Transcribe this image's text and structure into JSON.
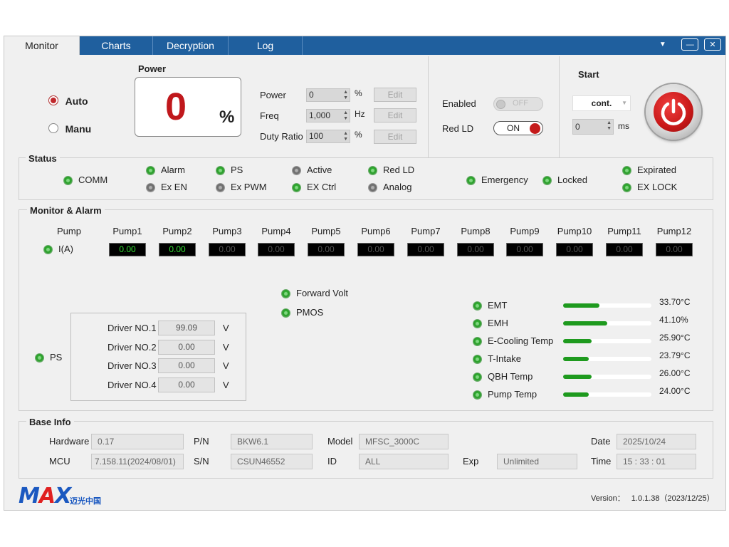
{
  "tabs": [
    {
      "label": "Monitor",
      "active": true
    },
    {
      "label": "Charts",
      "active": false
    },
    {
      "label": "Decryption",
      "active": false
    },
    {
      "label": "Log",
      "active": false
    }
  ],
  "window_controls": {
    "dropdown": "▼",
    "minimize": "—",
    "close": "✕"
  },
  "mode": {
    "auto_label": "Auto",
    "manu_label": "Manu",
    "selected": "Auto"
  },
  "power_display": {
    "title": "Power",
    "value": "0",
    "unit": "%"
  },
  "params": {
    "power": {
      "label": "Power",
      "value": "0",
      "unit": "%",
      "edit": "Edit"
    },
    "freq": {
      "label": "Freq",
      "value": "1,000",
      "unit": "Hz",
      "edit": "Edit"
    },
    "duty": {
      "label": "Duty Ratio",
      "value": "100",
      "unit": "%",
      "edit": "Edit"
    }
  },
  "switches": {
    "enabled": {
      "label": "Enabled",
      "state": "OFF"
    },
    "red_ld": {
      "label": "Red LD",
      "state": "ON"
    }
  },
  "start": {
    "title": "Start",
    "mode": "cont.",
    "delay_value": "0",
    "delay_unit": "ms"
  },
  "status": {
    "title": "Status",
    "items": {
      "comm": {
        "label": "COMM",
        "state": "green"
      },
      "alarm": {
        "label": "Alarm",
        "state": "green"
      },
      "ex_en": {
        "label": "Ex EN",
        "state": "gray"
      },
      "ps": {
        "label": "PS",
        "state": "green"
      },
      "ex_pwm": {
        "label": "Ex PWM",
        "state": "gray"
      },
      "active": {
        "label": "Active",
        "state": "gray"
      },
      "ex_ctrl": {
        "label": "EX Ctrl",
        "state": "green"
      },
      "red_ld": {
        "label": "Red LD",
        "state": "green"
      },
      "analog": {
        "label": "Analog",
        "state": "gray"
      },
      "emergency": {
        "label": "Emergency",
        "state": "green"
      },
      "locked": {
        "label": "Locked",
        "state": "green"
      },
      "expirated": {
        "label": "Expirated",
        "state": "green"
      },
      "ex_lock": {
        "label": "EX LOCK",
        "state": "green"
      }
    }
  },
  "monitor": {
    "title": "Monitor & Alarm",
    "pump_header": "Pump",
    "current_label": "I(A)",
    "pumps": [
      {
        "name": "Pump1",
        "value": "0.00",
        "active": true
      },
      {
        "name": "Pump2",
        "value": "0.00",
        "active": true
      },
      {
        "name": "Pump3",
        "value": "0.00",
        "active": false
      },
      {
        "name": "Pump4",
        "value": "0.00",
        "active": false
      },
      {
        "name": "Pump5",
        "value": "0.00",
        "active": false
      },
      {
        "name": "Pump6",
        "value": "0.00",
        "active": false
      },
      {
        "name": "Pump7",
        "value": "0.00",
        "active": false
      },
      {
        "name": "Pump8",
        "value": "0.00",
        "active": false
      },
      {
        "name": "Pump9",
        "value": "0.00",
        "active": false
      },
      {
        "name": "Pump10",
        "value": "0.00",
        "active": false
      },
      {
        "name": "Pump11",
        "value": "0.00",
        "active": false
      },
      {
        "name": "Pump12",
        "value": "0.00",
        "active": false
      }
    ],
    "forward_volt": "Forward Volt",
    "pmos": "PMOS",
    "ps_label": "PS",
    "drivers": [
      {
        "label": "Driver NO.1",
        "value": "99.09",
        "unit": "V"
      },
      {
        "label": "Driver NO.2",
        "value": "0.00",
        "unit": "V"
      },
      {
        "label": "Driver NO.3",
        "value": "0.00",
        "unit": "V"
      },
      {
        "label": "Driver NO.4",
        "value": "0.00",
        "unit": "V"
      }
    ],
    "temps": [
      {
        "label": "EMT",
        "value": "33.70°C",
        "level": 0.41
      },
      {
        "label": "EMH",
        "value": "41.10%",
        "level": 0.5
      },
      {
        "label": "E-Cooling Temp",
        "value": "25.90°C",
        "level": 0.32
      },
      {
        "label": "T-Intake",
        "value": "23.79°C",
        "level": 0.29
      },
      {
        "label": "QBH Temp",
        "value": "26.00°C",
        "level": 0.32
      },
      {
        "label": "Pump Temp",
        "value": "24.00°C",
        "level": 0.29
      }
    ]
  },
  "base_info": {
    "title": "Base Info",
    "hardware": {
      "label": "Hardware",
      "value": "0.17"
    },
    "mcu": {
      "label": "MCU",
      "value": "7.158.11(2024/08/01)"
    },
    "pn": {
      "label": "P/N",
      "value": "BKW6.1"
    },
    "sn": {
      "label": "S/N",
      "value": "CSUN46552"
    },
    "model": {
      "label": "Model",
      "value": "MFSC_3000C"
    },
    "id": {
      "label": "ID",
      "value": "ALL"
    },
    "exp": {
      "label": "Exp",
      "value": "Unlimited"
    },
    "date": {
      "label": "Date",
      "value": "2025/10/24"
    },
    "time": {
      "label": "Time",
      "value": "15 : 33 : 01"
    }
  },
  "footer": {
    "logo_main": "MAX",
    "logo_sub": "迈光中国",
    "version_label": "Version：",
    "version_value": "1.0.1.38（2023/12/25）"
  },
  "colors": {
    "tabbar": "#1f5f9e",
    "accent_red": "#c0181c",
    "led_green": "#2a9a2a",
    "led_gray": "#6a6a6a",
    "bar_green": "#1e9a1e"
  }
}
